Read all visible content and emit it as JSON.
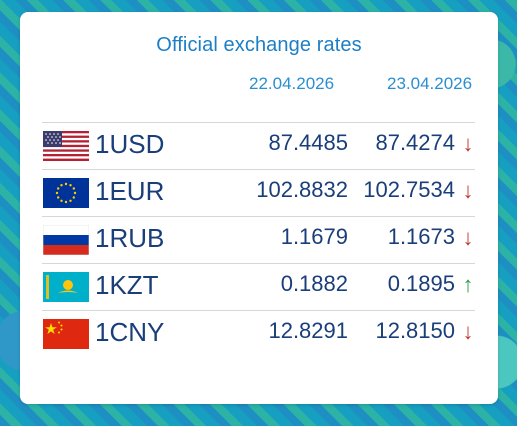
{
  "widget": {
    "title": "Official exchange rates",
    "date_prev": "22.04.2026",
    "date_curr": "23.04.2026",
    "rows": [
      {
        "code": "1USD",
        "prev": "87.4485",
        "curr": "87.4274",
        "trend": "down",
        "arrow": "↓",
        "flag": "us-flag-icon"
      },
      {
        "code": "1EUR",
        "prev": "102.8832",
        "curr": "102.7534",
        "trend": "down",
        "arrow": "↓",
        "flag": "eu-flag-icon"
      },
      {
        "code": "1RUB",
        "prev": "1.1679",
        "curr": "1.1673",
        "trend": "down",
        "arrow": "↓",
        "flag": "ru-flag-icon"
      },
      {
        "code": "1KZT",
        "prev": "0.1882",
        "curr": "0.1895",
        "trend": "up",
        "arrow": "↑",
        "flag": "kz-flag-icon"
      },
      {
        "code": "1CNY",
        "prev": "12.8291",
        "curr": "12.8150",
        "trend": "down",
        "arrow": "↓",
        "flag": "cn-flag-icon"
      }
    ]
  },
  "colors": {
    "title": "#1c7fc6",
    "text": "#1a3e7a",
    "down": "#c0392b",
    "up": "#2e9b4a"
  }
}
